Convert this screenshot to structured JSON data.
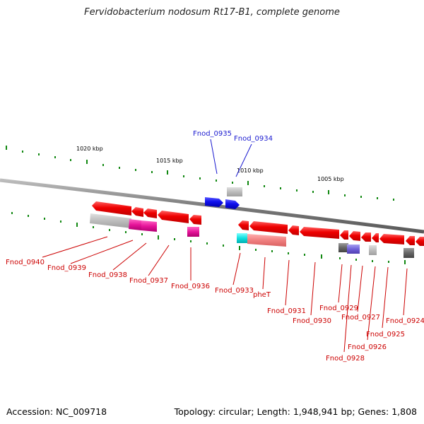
{
  "title": "Fervidobacterium nodosum Rt17-B1, complete genome",
  "footer": {
    "accession": "Accession: NC_009718",
    "info": "Topology: circular; Length: 1,948,941 bp; Genes: 1,808"
  },
  "colors": {
    "forward_gene": "#1a1ae6",
    "forward_label": "#1a1ad0",
    "reverse_gene": "#ee0000",
    "reverse_label": "#cc0000",
    "backbone": "#888888",
    "tick": "#118811"
  },
  "scale_labels": [
    "1020 kbp",
    "1015 kbp",
    "1010 kbp",
    "1005 kbp"
  ],
  "forward_genes": [
    "Fnod_0935",
    "Fnod_0934"
  ],
  "reverse_genes": [
    "Fnod_0940",
    "Fnod_0939",
    "Fnod_0938",
    "Fnod_0937",
    "Fnod_0936",
    "Fnod_0933",
    "pheT",
    "Fnod_0931",
    "Fnod_0930",
    "Fnod_0929",
    "Fnod_0928",
    "Fnod_0927",
    "Fnod_0926",
    "Fnod_0925",
    "Fnod_0924"
  ]
}
